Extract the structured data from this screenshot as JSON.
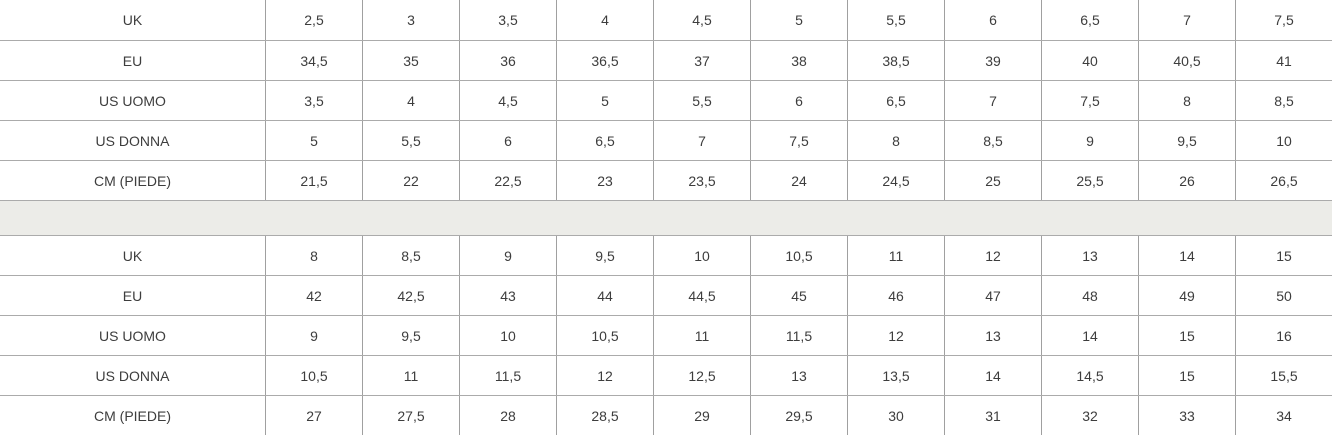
{
  "chart_data": [
    {
      "type": "table",
      "name": "size-conversion-small-sizes",
      "rows": [
        [
          "UK",
          "2,5",
          "3",
          "3,5",
          "4",
          "4,5",
          "5",
          "5,5",
          "6",
          "6,5",
          "7",
          "7,5"
        ],
        [
          "EU",
          "34,5",
          "35",
          "36",
          "36,5",
          "37",
          "38",
          "38,5",
          "39",
          "40",
          "40,5",
          "41"
        ],
        [
          "US UOMO",
          "3,5",
          "4",
          "4,5",
          "5",
          "5,5",
          "6",
          "6,5",
          "7",
          "7,5",
          "8",
          "8,5"
        ],
        [
          "US DONNA",
          "5",
          "5,5",
          "6",
          "6,5",
          "7",
          "7,5",
          "8",
          "8,5",
          "9",
          "9,5",
          "10"
        ],
        [
          "CM (PIEDE)",
          "21,5",
          "22",
          "22,5",
          "23",
          "23,5",
          "24",
          "24,5",
          "25",
          "25,5",
          "26",
          "26,5"
        ]
      ]
    },
    {
      "type": "table",
      "name": "size-conversion-large-sizes",
      "rows": [
        [
          "UK",
          "8",
          "8,5",
          "9",
          "9,5",
          "10",
          "10,5",
          "11",
          "12",
          "13",
          "14",
          "15"
        ],
        [
          "EU",
          "42",
          "42,5",
          "43",
          "44",
          "44,5",
          "45",
          "46",
          "47",
          "48",
          "49",
          "50"
        ],
        [
          "US UOMO",
          "9",
          "9,5",
          "10",
          "10,5",
          "11",
          "11,5",
          "12",
          "13",
          "14",
          "15",
          "16"
        ],
        [
          "US DONNA",
          "10,5",
          "11",
          "11,5",
          "12",
          "12,5",
          "13",
          "13,5",
          "14",
          "14,5",
          "15",
          "15,5"
        ],
        [
          "CM (PIEDE)",
          "27",
          "27,5",
          "28",
          "28,5",
          "29",
          "29,5",
          "30",
          "31",
          "32",
          "33",
          "34"
        ]
      ]
    }
  ],
  "row_labels": [
    "UK",
    "EU",
    "US UOMO",
    "US DONNA",
    "CM (PIEDE)"
  ],
  "colors": {
    "band": "#ecece8",
    "horizontal_border": "#ababab",
    "vertical_border": "#a0a0a0",
    "text": "#3d3d3d",
    "background": "#ffffff"
  }
}
